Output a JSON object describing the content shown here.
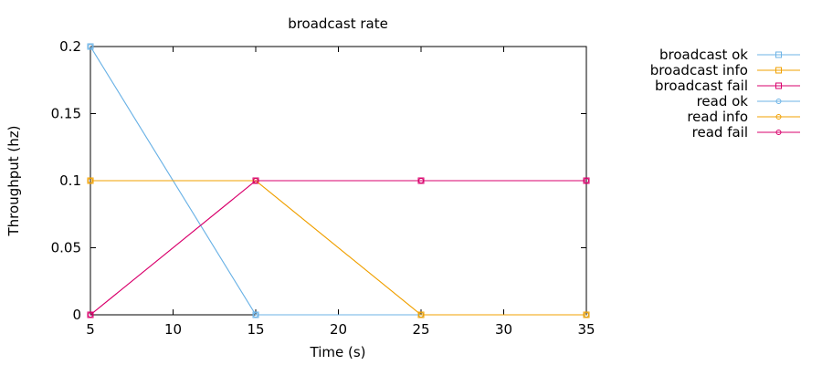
{
  "chart_data": {
    "type": "line",
    "title": "broadcast rate",
    "xlabel": "Time (s)",
    "ylabel": "Throughput (hz)",
    "xlim": [
      5,
      35
    ],
    "ylim": [
      0,
      0.2
    ],
    "xticks": [
      5,
      10,
      15,
      20,
      25,
      30,
      35
    ],
    "yticks": [
      0,
      0.05,
      0.1,
      0.15,
      0.2
    ],
    "xtick_labels": [
      "5",
      "10",
      "15",
      "20",
      "25",
      "30",
      "35"
    ],
    "ytick_labels": [
      "0",
      "0.05",
      "0.1",
      "0.15",
      "0.2"
    ],
    "grid": false,
    "legend_position": "outside-right",
    "series": [
      {
        "name": "broadcast ok",
        "color": "#6cb3e6",
        "marker": "square",
        "x": [
          5,
          15,
          25,
          35
        ],
        "y": [
          0.2,
          0,
          0,
          0
        ]
      },
      {
        "name": "broadcast info",
        "color": "#f0a000",
        "marker": "square",
        "x": [
          5,
          15,
          25,
          35
        ],
        "y": [
          0.1,
          0.1,
          0,
          0
        ]
      },
      {
        "name": "broadcast fail",
        "color": "#d9006c",
        "marker": "square",
        "x": [
          5,
          15,
          25,
          35
        ],
        "y": [
          0,
          0.1,
          0.1,
          0.1
        ]
      },
      {
        "name": "read ok",
        "color": "#6cb3e6",
        "marker": "circle",
        "x": [
          5,
          15,
          25,
          35
        ],
        "y": [
          0.2,
          0,
          0,
          0
        ]
      },
      {
        "name": "read info",
        "color": "#f0a000",
        "marker": "circle",
        "x": [
          5,
          15,
          25,
          35
        ],
        "y": [
          0.1,
          0.1,
          0,
          0
        ]
      },
      {
        "name": "read fail",
        "color": "#d9006c",
        "marker": "circle",
        "x": [
          5,
          15,
          25,
          35
        ],
        "y": [
          0,
          0.1,
          0.1,
          0.1
        ]
      }
    ]
  }
}
